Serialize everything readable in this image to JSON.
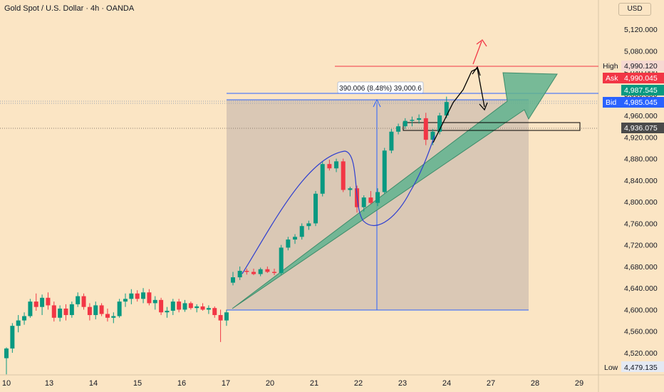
{
  "header": {
    "symbol_title": "Gold Spot / U.S. Dollar · 4h · OANDA",
    "currency": "USD"
  },
  "colors": {
    "up": "#089981",
    "down": "#f23645",
    "background": "#fbe5c4",
    "range_box": "#d2c0b2",
    "line": "#2962ff",
    "arrow_fill": "#5fb38f",
    "high_line": "#f23645"
  },
  "chart_data": {
    "type": "candlestick",
    "title": "Gold Spot / U.S. Dollar · 4h · OANDA",
    "ylim": [
      4500,
      5150
    ],
    "y_ticks": [
      "5,120.000",
      "5,080.000",
      "5,040.000",
      "5,000.000",
      "4,960.000",
      "4,920.000",
      "4,880.000",
      "4,840.000",
      "4,800.000",
      "4,760.000",
      "4,720.000",
      "4,680.000",
      "4,640.000",
      "4,600.000",
      "4,560.000",
      "4,520.000"
    ],
    "y_tick_values": [
      5120,
      5080,
      5040,
      5000,
      4960,
      4920,
      4880,
      4840,
      4800,
      4760,
      4720,
      4680,
      4640,
      4600,
      4560,
      4520
    ],
    "x_ticks": [
      "10",
      "13",
      "14",
      "15",
      "16",
      "17",
      "20",
      "21",
      "22",
      "23",
      "24",
      "27",
      "28",
      "29"
    ],
    "price_labels": {
      "high": {
        "label": "High",
        "value": "4,990.120"
      },
      "ask": {
        "label": "Ask",
        "value": "4,990.045"
      },
      "last": {
        "value": "4,987.545"
      },
      "bid": {
        "label": "Bid",
        "value": "4,985.045"
      },
      "level": {
        "value": "4,936.075"
      },
      "low": {
        "label": "Low",
        "value": "4,479.135"
      }
    },
    "measure_label": "390.006 (8.48%) 39,000.6",
    "candles": [
      {
        "o": 4510,
        "h": 4530,
        "l": 4480,
        "c": 4528
      },
      {
        "o": 4528,
        "h": 4575,
        "l": 4520,
        "c": 4570
      },
      {
        "o": 4570,
        "h": 4590,
        "l": 4558,
        "c": 4580
      },
      {
        "o": 4580,
        "h": 4595,
        "l": 4572,
        "c": 4588
      },
      {
        "o": 4588,
        "h": 4620,
        "l": 4585,
        "c": 4615
      },
      {
        "o": 4615,
        "h": 4630,
        "l": 4598,
        "c": 4605
      },
      {
        "o": 4605,
        "h": 4628,
        "l": 4590,
        "c": 4622
      },
      {
        "o": 4622,
        "h": 4632,
        "l": 4600,
        "c": 4608
      },
      {
        "o": 4608,
        "h": 4615,
        "l": 4578,
        "c": 4585
      },
      {
        "o": 4585,
        "h": 4608,
        "l": 4578,
        "c": 4602
      },
      {
        "o": 4602,
        "h": 4610,
        "l": 4580,
        "c": 4590
      },
      {
        "o": 4590,
        "h": 4615,
        "l": 4585,
        "c": 4610
      },
      {
        "o": 4610,
        "h": 4632,
        "l": 4605,
        "c": 4625
      },
      {
        "o": 4625,
        "h": 4630,
        "l": 4600,
        "c": 4605
      },
      {
        "o": 4605,
        "h": 4612,
        "l": 4580,
        "c": 4590
      },
      {
        "o": 4590,
        "h": 4615,
        "l": 4582,
        "c": 4608
      },
      {
        "o": 4608,
        "h": 4612,
        "l": 4588,
        "c": 4592
      },
      {
        "o": 4592,
        "h": 4602,
        "l": 4578,
        "c": 4585
      },
      {
        "o": 4585,
        "h": 4595,
        "l": 4575,
        "c": 4588
      },
      {
        "o": 4588,
        "h": 4620,
        "l": 4585,
        "c": 4615
      },
      {
        "o": 4615,
        "h": 4630,
        "l": 4605,
        "c": 4620
      },
      {
        "o": 4620,
        "h": 4638,
        "l": 4610,
        "c": 4630
      },
      {
        "o": 4630,
        "h": 4636,
        "l": 4615,
        "c": 4620
      },
      {
        "o": 4620,
        "h": 4640,
        "l": 4612,
        "c": 4632
      },
      {
        "o": 4632,
        "h": 4638,
        "l": 4608,
        "c": 4612
      },
      {
        "o": 4612,
        "h": 4625,
        "l": 4600,
        "c": 4618
      },
      {
        "o": 4618,
        "h": 4622,
        "l": 4590,
        "c": 4595
      },
      {
        "o": 4595,
        "h": 4605,
        "l": 4585,
        "c": 4598
      },
      {
        "o": 4598,
        "h": 4620,
        "l": 4590,
        "c": 4615
      },
      {
        "o": 4615,
        "h": 4620,
        "l": 4595,
        "c": 4600
      },
      {
        "o": 4600,
        "h": 4618,
        "l": 4596,
        "c": 4612
      },
      {
        "o": 4612,
        "h": 4615,
        "l": 4600,
        "c": 4603
      },
      {
        "o": 4603,
        "h": 4610,
        "l": 4595,
        "c": 4606
      },
      {
        "o": 4606,
        "h": 4612,
        "l": 4598,
        "c": 4600
      },
      {
        "o": 4600,
        "h": 4608,
        "l": 4592,
        "c": 4603
      },
      {
        "o": 4603,
        "h": 4606,
        "l": 4585,
        "c": 4590
      },
      {
        "o": 4590,
        "h": 4600,
        "l": 4540,
        "c": 4580
      },
      {
        "o": 4580,
        "h": 4600,
        "l": 4570,
        "c": 4595
      },
      {
        "o": 4650,
        "h": 4670,
        "l": 4645,
        "c": 4660
      },
      {
        "o": 4660,
        "h": 4680,
        "l": 4655,
        "c": 4672
      },
      {
        "o": 4672,
        "h": 4676,
        "l": 4665,
        "c": 4670
      },
      {
        "o": 4670,
        "h": 4676,
        "l": 4664,
        "c": 4666
      },
      {
        "o": 4666,
        "h": 4678,
        "l": 4662,
        "c": 4675
      },
      {
        "o": 4675,
        "h": 4680,
        "l": 4668,
        "c": 4670
      },
      {
        "o": 4670,
        "h": 4676,
        "l": 4664,
        "c": 4668
      },
      {
        "o": 4668,
        "h": 4720,
        "l": 4665,
        "c": 4715
      },
      {
        "o": 4715,
        "h": 4735,
        "l": 4710,
        "c": 4730
      },
      {
        "o": 4730,
        "h": 4740,
        "l": 4722,
        "c": 4735
      },
      {
        "o": 4735,
        "h": 4760,
        "l": 4730,
        "c": 4755
      },
      {
        "o": 4755,
        "h": 4765,
        "l": 4748,
        "c": 4760
      },
      {
        "o": 4760,
        "h": 4820,
        "l": 4755,
        "c": 4815
      },
      {
        "o": 4815,
        "h": 4875,
        "l": 4810,
        "c": 4870
      },
      {
        "o": 4870,
        "h": 4878,
        "l": 4858,
        "c": 4862
      },
      {
        "o": 4862,
        "h": 4880,
        "l": 4855,
        "c": 4875
      },
      {
        "o": 4875,
        "h": 4880,
        "l": 4818,
        "c": 4822
      },
      {
        "o": 4822,
        "h": 4828,
        "l": 4810,
        "c": 4825
      },
      {
        "o": 4825,
        "h": 4830,
        "l": 4780,
        "c": 4790
      },
      {
        "o": 4790,
        "h": 4812,
        "l": 4782,
        "c": 4808
      },
      {
        "o": 4808,
        "h": 4820,
        "l": 4795,
        "c": 4798
      },
      {
        "o": 4798,
        "h": 4825,
        "l": 4792,
        "c": 4818
      },
      {
        "o": 4818,
        "h": 4900,
        "l": 4815,
        "c": 4895
      },
      {
        "o": 4895,
        "h": 4935,
        "l": 4890,
        "c": 4930
      },
      {
        "o": 4930,
        "h": 4945,
        "l": 4925,
        "c": 4940
      },
      {
        "o": 4940,
        "h": 4955,
        "l": 4935,
        "c": 4950
      },
      {
        "o": 4950,
        "h": 4958,
        "l": 4940,
        "c": 4952
      },
      {
        "o": 4952,
        "h": 4962,
        "l": 4945,
        "c": 4955
      },
      {
        "o": 4955,
        "h": 4965,
        "l": 4905,
        "c": 4915
      },
      {
        "o": 4915,
        "h": 4935,
        "l": 4905,
        "c": 4930
      },
      {
        "o": 4930,
        "h": 4965,
        "l": 4925,
        "c": 4960
      },
      {
        "o": 4960,
        "h": 4995,
        "l": 4955,
        "c": 4985
      }
    ]
  }
}
